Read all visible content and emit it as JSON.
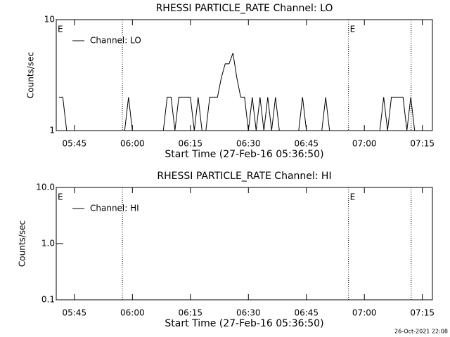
{
  "chart_data": [
    {
      "type": "line",
      "title": "RHESSI PARTICLE_RATE Channel: LO",
      "ylabel": "Counts/sec",
      "xlabel": "Start Time (27-Feb-16 05:36:50)",
      "log_y": true,
      "ylim": [
        1,
        10
      ],
      "yticks": [
        1,
        10
      ],
      "xlim": [
        340.3,
        437.6
      ],
      "xticks": [
        {
          "value": 345,
          "label": "05:45"
        },
        {
          "value": 360,
          "label": "06:00"
        },
        {
          "value": 375,
          "label": "06:15"
        },
        {
          "value": 390,
          "label": "06:30"
        },
        {
          "value": 405,
          "label": "06:45"
        },
        {
          "value": 420,
          "label": "07:00"
        },
        {
          "value": 435,
          "label": "07:15"
        }
      ],
      "vlines": [
        357.4,
        415.9,
        432.1
      ],
      "annotations": [
        {
          "text": "E",
          "x": 340.3
        },
        {
          "text": "E",
          "x": 415.9
        }
      ],
      "legend": "upper left",
      "x": [
        341,
        342,
        343,
        344,
        345,
        346,
        347,
        348,
        349,
        350,
        351,
        352,
        353,
        354,
        355,
        356,
        357,
        358,
        359,
        360,
        361,
        362,
        363,
        364,
        365,
        366,
        367,
        368,
        369,
        370,
        371,
        372,
        373,
        374,
        375,
        376,
        377,
        378,
        379,
        380,
        381,
        382,
        383,
        384,
        385,
        386,
        387,
        388,
        389,
        390,
        391,
        392,
        393,
        394,
        395,
        396,
        397,
        398,
        399,
        400,
        401,
        402,
        403,
        404,
        405,
        406,
        407,
        408,
        409,
        410,
        411,
        412,
        413,
        414,
        415,
        416,
        417,
        418,
        419,
        420,
        421,
        422,
        423,
        424,
        425,
        426,
        427,
        428,
        429,
        430,
        431,
        432,
        433,
        434,
        435,
        436,
        437
      ],
      "series": [
        {
          "name": "Channel: LO",
          "color": "#000000",
          "values": [
            2,
            2,
            1,
            1,
            1,
            1,
            1,
            1,
            1,
            1,
            1,
            1,
            1,
            1,
            1,
            1,
            1,
            1,
            2,
            1,
            1,
            1,
            1,
            1,
            1,
            1,
            1,
            1,
            2,
            2,
            1,
            2,
            2,
            2,
            2,
            1,
            2,
            1,
            1,
            2,
            2,
            2,
            3,
            4,
            4,
            5,
            3,
            2,
            2,
            1,
            2,
            1,
            2,
            1,
            2,
            1,
            2,
            1,
            1,
            1,
            1,
            1,
            1,
            2,
            1,
            1,
            1,
            1,
            1,
            2,
            1,
            1,
            1,
            1,
            1,
            1,
            1,
            1,
            1,
            1,
            1,
            1,
            1,
            1,
            2,
            1,
            2,
            2,
            2,
            2,
            1,
            2,
            1,
            1,
            1,
            1,
            1
          ]
        }
      ]
    },
    {
      "type": "line",
      "title": "RHESSI PARTICLE_RATE Channel: HI",
      "ylabel": "Counts/sec",
      "xlabel": "Start Time (27-Feb-16 05:36:50)",
      "log_y": true,
      "ylim": [
        0.1,
        10
      ],
      "yticks": [
        0.1,
        {
          "value": 1,
          "label": "1.0"
        },
        {
          "value": 10,
          "label": "10.0"
        }
      ],
      "xlim": [
        340.3,
        437.6
      ],
      "xticks": [
        {
          "value": 345,
          "label": "05:45"
        },
        {
          "value": 360,
          "label": "06:00"
        },
        {
          "value": 375,
          "label": "06:15"
        },
        {
          "value": 390,
          "label": "06:30"
        },
        {
          "value": 405,
          "label": "06:45"
        },
        {
          "value": 420,
          "label": "07:00"
        },
        {
          "value": 435,
          "label": "07:15"
        }
      ],
      "vlines": [
        357.4,
        415.9,
        432.1
      ],
      "annotations": [
        {
          "text": "E",
          "x": 340.3
        },
        {
          "text": "E",
          "x": 415.9
        }
      ],
      "legend": "upper left",
      "x": [],
      "series": [
        {
          "name": "Channel: HI",
          "color": "#000000",
          "values": []
        }
      ]
    }
  ],
  "footer": "26-Oct-2021 22:08"
}
